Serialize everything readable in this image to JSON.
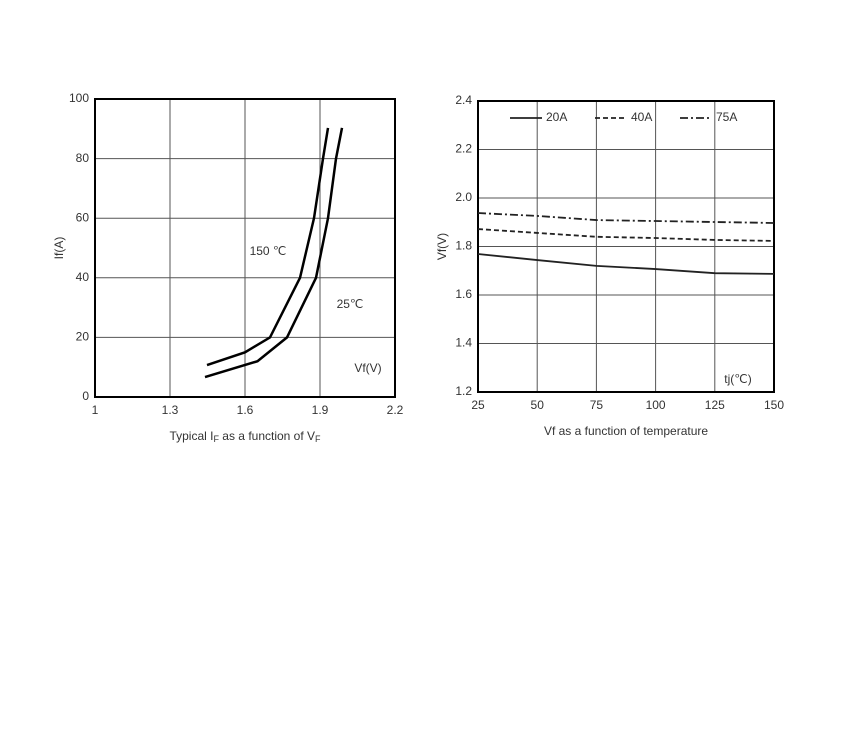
{
  "chart_data": [
    {
      "type": "line",
      "title_parts": [
        "Typical I",
        "F",
        " as a function of V",
        "F"
      ],
      "y_label": "If(A)",
      "annotations": [
        "150 ℃",
        "25℃",
        "Vf(V)"
      ],
      "xlim": [
        1,
        2.2
      ],
      "xticks": [
        1,
        1.3,
        1.6,
        1.9,
        2.2
      ],
      "ylim": [
        0,
        100
      ],
      "yticks": [
        0,
        20,
        40,
        60,
        80,
        100
      ],
      "grid": true,
      "series": [
        {
          "color": "#000000",
          "dash": "solid",
          "x": [
            1.448,
            1.6,
            1.7,
            1.82,
            1.876,
            1.912,
            1.932
          ],
          "values": [
            10.7,
            15,
            20,
            40,
            60,
            80,
            90.3
          ]
        },
        {
          "color": "#000000",
          "dash": "solid",
          "x": [
            1.44,
            1.65,
            1.768,
            1.884,
            1.932,
            1.964,
            1.988
          ],
          "values": [
            6.7,
            12,
            20,
            40,
            60,
            80,
            90.3
          ]
        }
      ]
    },
    {
      "type": "line",
      "title": "Vf as a function of temperature",
      "x_label": "tj(℃)",
      "y_label": "Vf(V)",
      "xlim": [
        25,
        150
      ],
      "xticks": [
        25,
        50,
        75,
        100,
        125,
        150
      ],
      "ylim": [
        1.2,
        2.4
      ],
      "yticks": [
        1.2,
        1.4,
        1.6,
        1.8,
        {
          "value": 2.0,
          "label": "2.0"
        },
        2.2,
        2.4
      ],
      "grid": true,
      "legend": "top",
      "x": [
        25,
        50,
        75,
        100,
        125,
        150
      ],
      "series": [
        {
          "name": "20A",
          "color": "#222222",
          "dash": "solid",
          "values": [
            1.769,
            1.744,
            1.72,
            1.707,
            1.69,
            1.687
          ]
        },
        {
          "name": "40A",
          "color": "#222222",
          "dash": "dashed",
          "values": [
            1.872,
            1.856,
            1.84,
            1.835,
            1.827,
            1.823
          ]
        },
        {
          "name": "75A",
          "color": "#222222",
          "dash": "dashdot",
          "values": [
            1.938,
            1.926,
            1.909,
            1.905,
            1.901,
            1.897
          ]
        }
      ]
    }
  ]
}
